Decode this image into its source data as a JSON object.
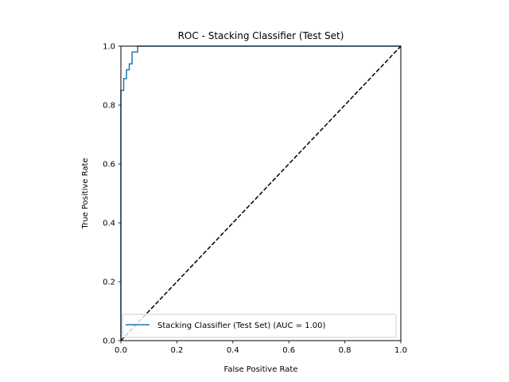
{
  "chart_data": {
    "type": "line",
    "title": "ROC - Stacking Classifier (Test Set)",
    "xlabel": "False Positive Rate",
    "ylabel": "True Positive Rate",
    "xlim": [
      0.0,
      1.0
    ],
    "ylim": [
      0.0,
      1.0
    ],
    "xticks": [
      "0.0",
      "0.2",
      "0.4",
      "0.6",
      "0.8",
      "1.0"
    ],
    "yticks": [
      "0.0",
      "0.2",
      "0.4",
      "0.6",
      "0.8",
      "1.0"
    ],
    "grid": false,
    "legend_position": "lower-right",
    "series": [
      {
        "name": "Stacking Classifier (Test Set) (AUC = 1.00)",
        "color": "#1f77b4",
        "style": "solid",
        "x": [
          0.0,
          0.0,
          0.0,
          0.01,
          0.01,
          0.02,
          0.02,
          0.03,
          0.03,
          0.04,
          0.04,
          0.06,
          0.06,
          1.0
        ],
        "y": [
          0.0,
          0.01,
          0.85,
          0.85,
          0.89,
          0.89,
          0.92,
          0.92,
          0.94,
          0.94,
          0.98,
          0.98,
          1.0,
          1.0
        ]
      },
      {
        "name": "",
        "color": "#000000",
        "style": "dashed",
        "x": [
          0.0,
          1.0
        ],
        "y": [
          0.0,
          1.0
        ]
      }
    ]
  }
}
